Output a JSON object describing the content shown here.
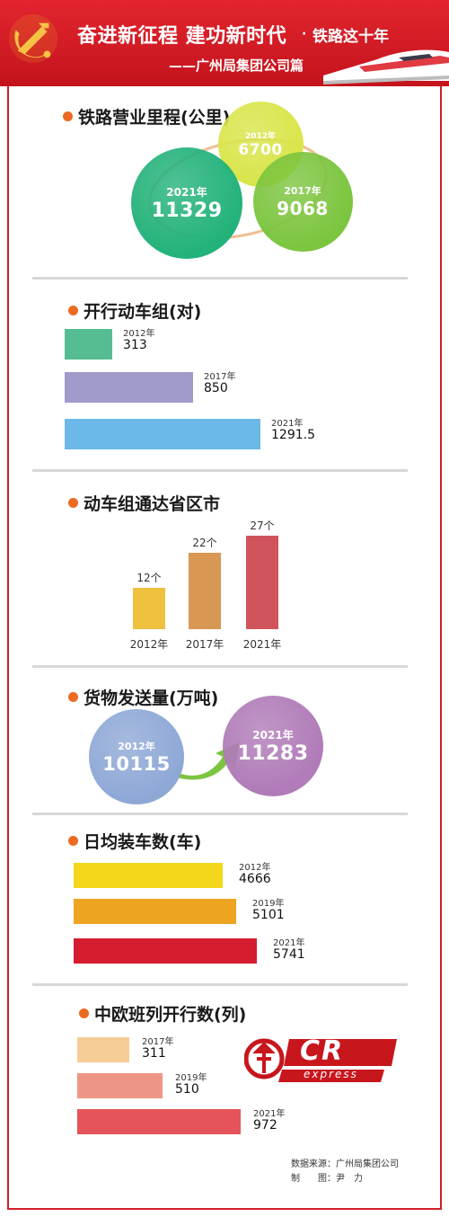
{
  "header": {
    "title": "奋进新征程 建功新时代",
    "subtitle_suffix": "铁路这十年",
    "dot": "·",
    "byline": "——广州局集团公司篇"
  },
  "sections": {
    "mileage": {
      "title": "铁路营业里程(公里)"
    },
    "emu_sets": {
      "title": "开行动车组(对)"
    },
    "provinces": {
      "title": "动车组通达省区市"
    },
    "freight": {
      "title": "货物发送量(万吨)"
    },
    "daily_cars": {
      "title": "日均装车数(车)"
    },
    "china_europe": {
      "title": "中欧班列开行数(列)"
    }
  },
  "chart_data": [
    {
      "type": "bubble",
      "title": "铁路营业里程(公里)",
      "points": [
        {
          "year": "2012年",
          "value": 6700,
          "label": "6700",
          "color": "#d9e54a"
        },
        {
          "year": "2017年",
          "value": 9068,
          "label": "9068",
          "color": "#7cc53f"
        },
        {
          "year": "2021年",
          "value": 11329,
          "label": "11329",
          "color": "#23b27a"
        }
      ]
    },
    {
      "type": "bar",
      "orientation": "horizontal",
      "title": "开行动车组(对)",
      "categories": [
        "2012年",
        "2017年",
        "2021年"
      ],
      "values": [
        313,
        850,
        1291.5
      ],
      "labels": [
        "313",
        "850",
        "1291.5"
      ],
      "colors": [
        "#56bd93",
        "#a19bcc",
        "#6cb8e8"
      ]
    },
    {
      "type": "bar",
      "orientation": "vertical",
      "title": "动车组通达省区市",
      "categories": [
        "2012年",
        "2017年",
        "2021年"
      ],
      "values": [
        12,
        22,
        27
      ],
      "labels": [
        "12个",
        "22个",
        "27个"
      ],
      "colors": [
        "#f0c13f",
        "#d89753",
        "#cf545b"
      ]
    },
    {
      "type": "bubble",
      "title": "货物发送量(万吨)",
      "points": [
        {
          "year": "2012年",
          "value": 10115,
          "label": "10115",
          "color": "#8ea8d6"
        },
        {
          "year": "2021年",
          "value": 11283,
          "label": "11283",
          "color": "#b07bb8"
        }
      ],
      "arrow_color": "#7cc53f"
    },
    {
      "type": "bar",
      "orientation": "horizontal",
      "title": "日均装车数(车)",
      "categories": [
        "2012年",
        "2019年",
        "2021年"
      ],
      "values": [
        4666,
        5101,
        5741
      ],
      "labels": [
        "4666",
        "5101",
        "5741"
      ],
      "colors": [
        "#f4d71b",
        "#eda421",
        "#d61c2f"
      ]
    },
    {
      "type": "bar",
      "orientation": "horizontal",
      "title": "中欧班列开行数(列)",
      "categories": [
        "2017年",
        "2019年",
        "2021年"
      ],
      "values": [
        311,
        510,
        972
      ],
      "labels": [
        "311",
        "510",
        "972"
      ],
      "colors": [
        "#f6cc97",
        "#ee9584",
        "#e4545a"
      ]
    }
  ],
  "logo": {
    "cr": "CR",
    "express": "express"
  },
  "source": {
    "line1": "数据来源：广州局集团公司",
    "line2": "制　　图：尹　力"
  },
  "colors": {
    "banner_red": "#d21f2a",
    "bullet": "#ec6a21"
  }
}
